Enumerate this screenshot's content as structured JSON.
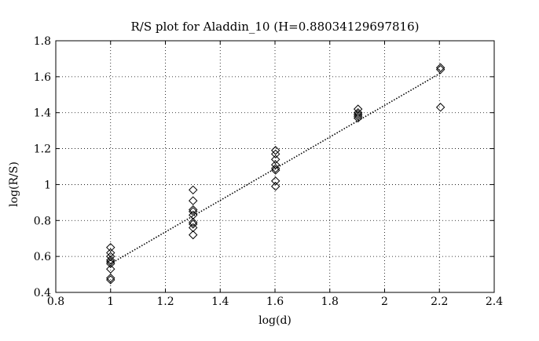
{
  "chart_data": {
    "type": "scatter",
    "title": "R/S plot for Aladdin_10 (H=0.88034129697816)",
    "xlabel": "log(d)",
    "ylabel": "log(R/S)",
    "xlim": [
      0.8,
      2.4
    ],
    "ylim": [
      0.4,
      1.8
    ],
    "x_ticks": [
      0.8,
      1,
      1.2,
      1.4,
      1.6,
      1.8,
      2,
      2.2,
      2.4
    ],
    "x_tick_labels": [
      "0.8",
      "1",
      "1.2",
      "1.4",
      "1.6",
      "1.8",
      "2",
      "2.2",
      "2.4"
    ],
    "y_ticks": [
      0.4,
      0.6,
      0.8,
      1,
      1.2,
      1.4,
      1.6,
      1.8
    ],
    "y_tick_labels": [
      "0.4",
      "0.6",
      "0.8",
      "1",
      "1.2",
      "1.4",
      "1.6",
      "1.8"
    ],
    "grid": true,
    "marker": "diamond",
    "points": [
      {
        "x": 1.0,
        "y": 0.65
      },
      {
        "x": 1.0,
        "y": 0.62
      },
      {
        "x": 1.0,
        "y": 0.6
      },
      {
        "x": 1.0,
        "y": 0.58
      },
      {
        "x": 1.0,
        "y": 0.57
      },
      {
        "x": 1.0,
        "y": 0.56
      },
      {
        "x": 1.0,
        "y": 0.53
      },
      {
        "x": 1.0,
        "y": 0.48
      },
      {
        "x": 1.0,
        "y": 0.47
      },
      {
        "x": 1.301,
        "y": 0.97
      },
      {
        "x": 1.301,
        "y": 0.91
      },
      {
        "x": 1.301,
        "y": 0.86
      },
      {
        "x": 1.301,
        "y": 0.85
      },
      {
        "x": 1.301,
        "y": 0.83
      },
      {
        "x": 1.301,
        "y": 0.79
      },
      {
        "x": 1.301,
        "y": 0.78
      },
      {
        "x": 1.301,
        "y": 0.76
      },
      {
        "x": 1.301,
        "y": 0.72
      },
      {
        "x": 1.602,
        "y": 1.19
      },
      {
        "x": 1.602,
        "y": 1.17
      },
      {
        "x": 1.602,
        "y": 1.14
      },
      {
        "x": 1.602,
        "y": 1.11
      },
      {
        "x": 1.602,
        "y": 1.09
      },
      {
        "x": 1.602,
        "y": 1.08
      },
      {
        "x": 1.602,
        "y": 1.02
      },
      {
        "x": 1.602,
        "y": 0.99
      },
      {
        "x": 1.903,
        "y": 1.42
      },
      {
        "x": 1.903,
        "y": 1.4
      },
      {
        "x": 1.903,
        "y": 1.39
      },
      {
        "x": 1.903,
        "y": 1.38
      },
      {
        "x": 1.903,
        "y": 1.37
      },
      {
        "x": 2.204,
        "y": 1.65
      },
      {
        "x": 2.204,
        "y": 1.64
      },
      {
        "x": 2.204,
        "y": 1.43
      }
    ],
    "fit_line": {
      "x": [
        1.0,
        2.204
      ],
      "y": [
        0.56,
        1.62
      ],
      "style": "dotted"
    }
  }
}
